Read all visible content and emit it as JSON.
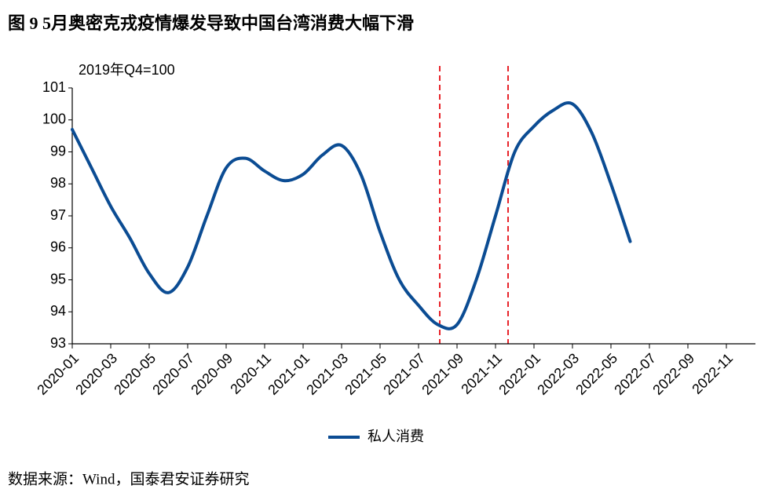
{
  "chart_data": {
    "type": "line",
    "title": "图 9 5月奥密克戎疫情爆发导致中国台湾消费大幅下滑",
    "unit_label": "2019年Q4=100",
    "source": "数据来源：Wind，国泰君安证券研究",
    "categories": [
      "2020-01",
      null,
      "2020-03",
      null,
      "2020-05",
      null,
      "2020-07",
      null,
      "2020-09",
      null,
      "2020-11",
      null,
      "2021-01",
      null,
      "2021-03",
      null,
      "2021-05",
      null,
      "2021-07",
      null,
      "2021-09",
      null,
      "2021-11",
      null,
      "2022-01",
      null,
      "2022-03",
      null,
      "2022-05",
      null,
      "2022-07",
      null,
      "2022-09",
      null,
      "2022-11",
      null
    ],
    "series": [
      {
        "name": "私人消费",
        "color": "#0b4c93",
        "values": [
          99.7,
          98.5,
          97.3,
          96.3,
          95.2,
          94.6,
          95.4,
          97.0,
          98.5,
          98.8,
          98.4,
          98.1,
          98.3,
          98.9,
          99.2,
          98.3,
          96.5,
          95.0,
          94.2,
          93.6,
          93.6,
          95.0,
          97.0,
          99.0,
          99.8,
          100.3,
          100.5,
          99.6,
          98.0,
          96.2,
          null,
          null,
          null,
          null,
          null,
          null
        ]
      }
    ],
    "ylim": [
      93,
      101
    ],
    "yticks": [
      93,
      94,
      95,
      96,
      97,
      98,
      99,
      100,
      101
    ]
  }
}
